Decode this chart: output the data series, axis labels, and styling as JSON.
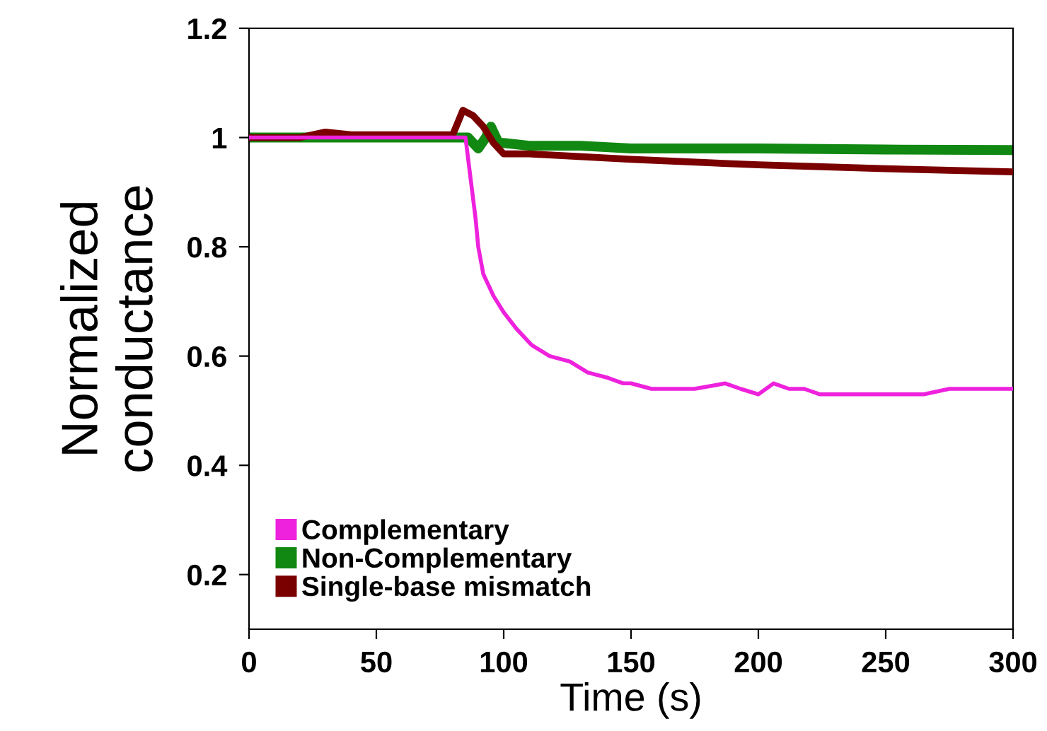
{
  "chart_data": {
    "type": "line",
    "xlabel": "Time (s)",
    "ylabel": "Normalized\nconductance",
    "xlim": [
      0,
      300
    ],
    "xticks": [
      0,
      50,
      100,
      150,
      200,
      250,
      300
    ],
    "ylim": [
      0.1,
      1.2
    ],
    "yticks": [
      0.2,
      0.4,
      0.6,
      0.8,
      1,
      1.2
    ],
    "grid": false,
    "legend": "bottom left",
    "marker": "none",
    "line_style": "solid",
    "series": [
      {
        "name": "Complementary",
        "color": "#ee22dd",
        "x": [
          0,
          20,
          40,
          60,
          80,
          85,
          89,
          90,
          92,
          96,
          100,
          105,
          111,
          118,
          126,
          133,
          141,
          147,
          150,
          158,
          165,
          175,
          187,
          193,
          200,
          206,
          212,
          218,
          224,
          235,
          245,
          255,
          265,
          275,
          285,
          295,
          300
        ],
        "values": [
          1.0,
          1.0,
          1.0,
          1.0,
          1.0,
          1.0,
          0.85,
          0.8,
          0.75,
          0.71,
          0.68,
          0.65,
          0.62,
          0.6,
          0.59,
          0.57,
          0.56,
          0.55,
          0.55,
          0.54,
          0.54,
          0.54,
          0.55,
          0.54,
          0.53,
          0.55,
          0.54,
          0.54,
          0.53,
          0.53,
          0.53,
          0.53,
          0.53,
          0.54,
          0.54,
          0.54,
          0.54
        ]
      },
      {
        "name": "Non-Complementary",
        "color": "#118811",
        "x": [
          0,
          20,
          40,
          60,
          80,
          86,
          90,
          93,
          95,
          98,
          100,
          110,
          130,
          150,
          200,
          250,
          300
        ],
        "values": [
          1.0,
          1.0,
          1.0,
          1.0,
          1.0,
          1.0,
          0.98,
          1.0,
          1.02,
          0.99,
          0.99,
          0.985,
          0.985,
          0.98,
          0.98,
          0.978,
          0.977
        ]
      },
      {
        "name": "Single-base mismatch",
        "color": "#7a0000",
        "x": [
          0,
          20,
          30,
          40,
          60,
          80,
          84,
          88,
          92,
          96,
          100,
          110,
          150,
          200,
          250,
          300
        ],
        "values": [
          1.0,
          1.0,
          1.01,
          1.005,
          1.005,
          1.005,
          1.05,
          1.04,
          1.02,
          0.99,
          0.97,
          0.97,
          0.96,
          0.95,
          0.943,
          0.937
        ]
      }
    ]
  }
}
